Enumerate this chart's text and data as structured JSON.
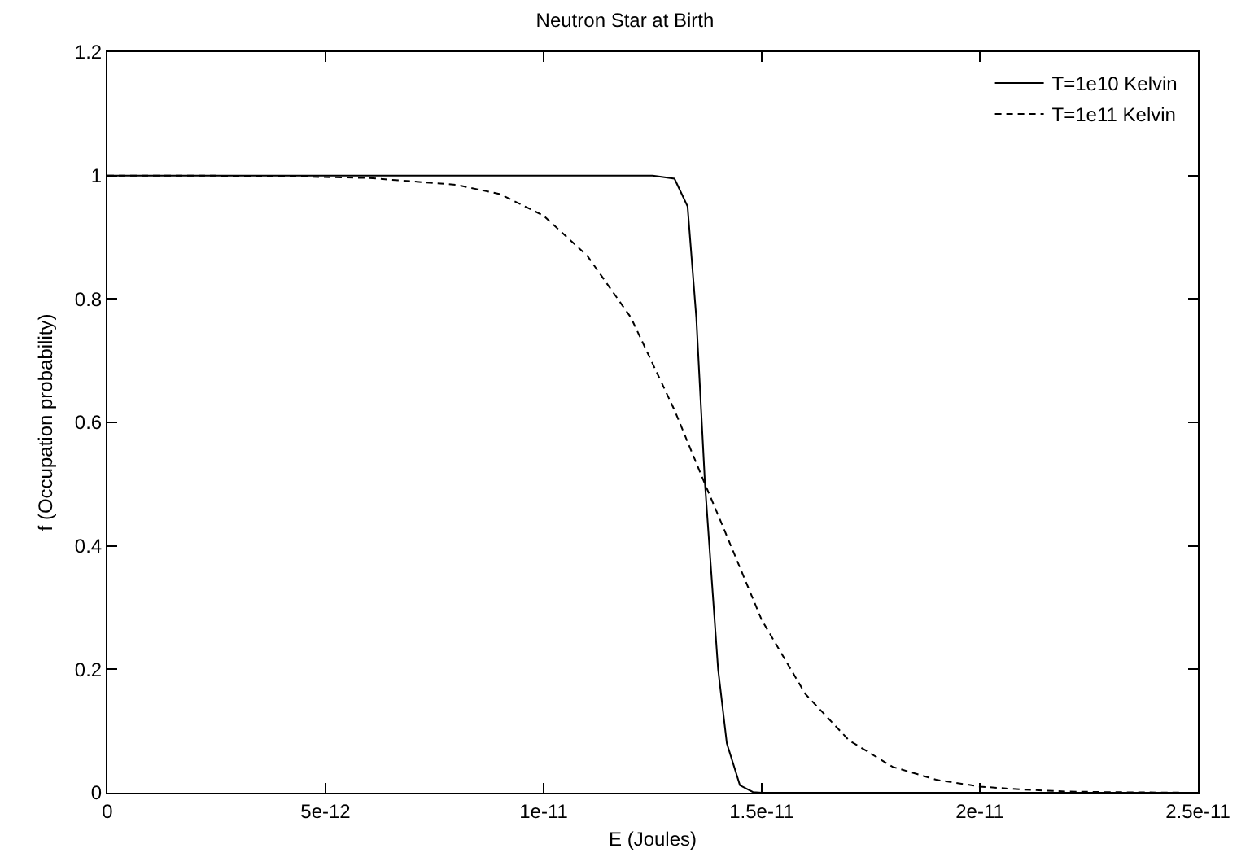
{
  "chart_data": {
    "type": "line",
    "title": "Neutron Star at Birth",
    "xlabel": "E (Joules)",
    "ylabel": "f (Occupation probability)",
    "xlim": [
      0,
      2.5e-11
    ],
    "ylim": [
      0,
      1.2
    ],
    "xticks": [
      0,
      {
        "value": 5e-12,
        "label": "5e-12"
      },
      {
        "value": 1e-11,
        "label": "1e-11"
      },
      {
        "value": 1.5e-11,
        "label": "1.5e-11"
      },
      {
        "value": 2e-11,
        "label": "2e-11"
      },
      {
        "value": 2.5e-11,
        "label": "2.5e-11"
      }
    ],
    "yticks": [
      0,
      0.2,
      0.4,
      0.6,
      0.8,
      1,
      1.2
    ],
    "legend": "top right",
    "marker": "none",
    "series": [
      {
        "name": "T=1e10 Kelvin",
        "color": "#000000",
        "line_style": "solid",
        "x": [
          0,
          5e-12,
          1e-11,
          1.25e-11,
          1.3e-11,
          1.33e-11,
          1.35e-11,
          1.37e-11,
          1.4e-11,
          1.42e-11,
          1.45e-11,
          1.48e-11,
          1.5e-11,
          2e-11,
          2.5e-11
        ],
        "values": [
          1,
          1,
          1,
          1,
          0.995,
          0.95,
          0.77,
          0.5,
          0.2,
          0.08,
          0.012,
          0.001,
          0,
          0,
          0
        ]
      },
      {
        "name": "T=1e11 Kelvin",
        "color": "#000000",
        "line_style": "dashed",
        "x": [
          0,
          2e-12,
          4e-12,
          6e-12,
          8e-12,
          9e-12,
          1e-11,
          1.1e-11,
          1.2e-11,
          1.3e-11,
          1.37e-11,
          1.4e-11,
          1.5e-11,
          1.6e-11,
          1.7e-11,
          1.8e-11,
          1.9e-11,
          2e-11,
          2.1e-11,
          2.2e-11,
          2.3e-11,
          2.5e-11
        ],
        "values": [
          1,
          1,
          0.999,
          0.996,
          0.985,
          0.97,
          0.935,
          0.87,
          0.77,
          0.62,
          0.5,
          0.45,
          0.28,
          0.16,
          0.085,
          0.042,
          0.021,
          0.01,
          0.005,
          0.002,
          0.001,
          0
        ]
      }
    ]
  }
}
